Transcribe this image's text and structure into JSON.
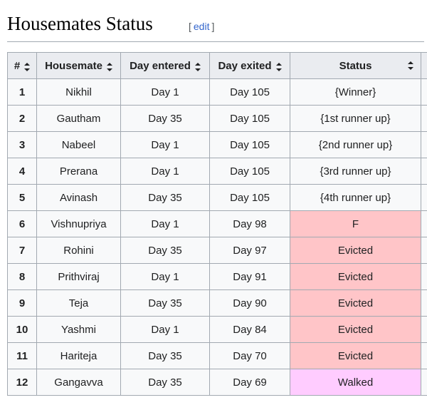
{
  "section": {
    "title": "Housemates Status",
    "edit_open": "[",
    "edit_label": "edit",
    "edit_close": "]"
  },
  "table": {
    "headers": [
      "#",
      "Housemate",
      "Day entered",
      "Day exited",
      "Status",
      ""
    ],
    "rows": [
      {
        "num": "1",
        "name": "Nikhil",
        "entered": "Day 1",
        "exited": "Day 105",
        "status": "{Winner}",
        "status_color": "#f8f9fa"
      },
      {
        "num": "2",
        "name": "Gautham",
        "entered": "Day 35",
        "exited": "Day 105",
        "status": "{1st runner up}",
        "status_color": "#f8f9fa"
      },
      {
        "num": "3",
        "name": "Nabeel",
        "entered": "Day 1",
        "exited": "Day 105",
        "status": "{2nd runner up}",
        "status_color": "#f8f9fa"
      },
      {
        "num": "4",
        "name": "Prerana",
        "entered": "Day 1",
        "exited": "Day 105",
        "status": "{3rd runner up}",
        "status_color": "#f8f9fa"
      },
      {
        "num": "5",
        "name": "Avinash",
        "entered": "Day 35",
        "exited": "Day 105",
        "status": "{4th runner up}",
        "status_color": "#f8f9fa"
      },
      {
        "num": "6",
        "name": "Vishnupriya",
        "entered": "Day 1",
        "exited": "Day 98",
        "status": "F",
        "status_color": "#ffc5c8"
      },
      {
        "num": "7",
        "name": "Rohini",
        "entered": "Day 35",
        "exited": "Day 97",
        "status": "Evicted",
        "status_color": "#ffc5c8"
      },
      {
        "num": "8",
        "name": "Prithviraj",
        "entered": "Day 1",
        "exited": "Day 91",
        "status": "Evicted",
        "status_color": "#ffc5c8"
      },
      {
        "num": "9",
        "name": "Teja",
        "entered": "Day 35",
        "exited": "Day 90",
        "status": "Evicted",
        "status_color": "#ffc5c8"
      },
      {
        "num": "10",
        "name": "Yashmi",
        "entered": "Day 1",
        "exited": "Day 84",
        "status": "Evicted",
        "status_color": "#ffc5c8"
      },
      {
        "num": "11",
        "name": "Hariteja",
        "entered": "Day 35",
        "exited": "Day 70",
        "status": "Evicted",
        "status_color": "#ffc5c8"
      },
      {
        "num": "12",
        "name": "Gangavva",
        "entered": "Day 35",
        "exited": "Day 69",
        "status": "Walked",
        "status_color": "#ffccff"
      }
    ]
  }
}
